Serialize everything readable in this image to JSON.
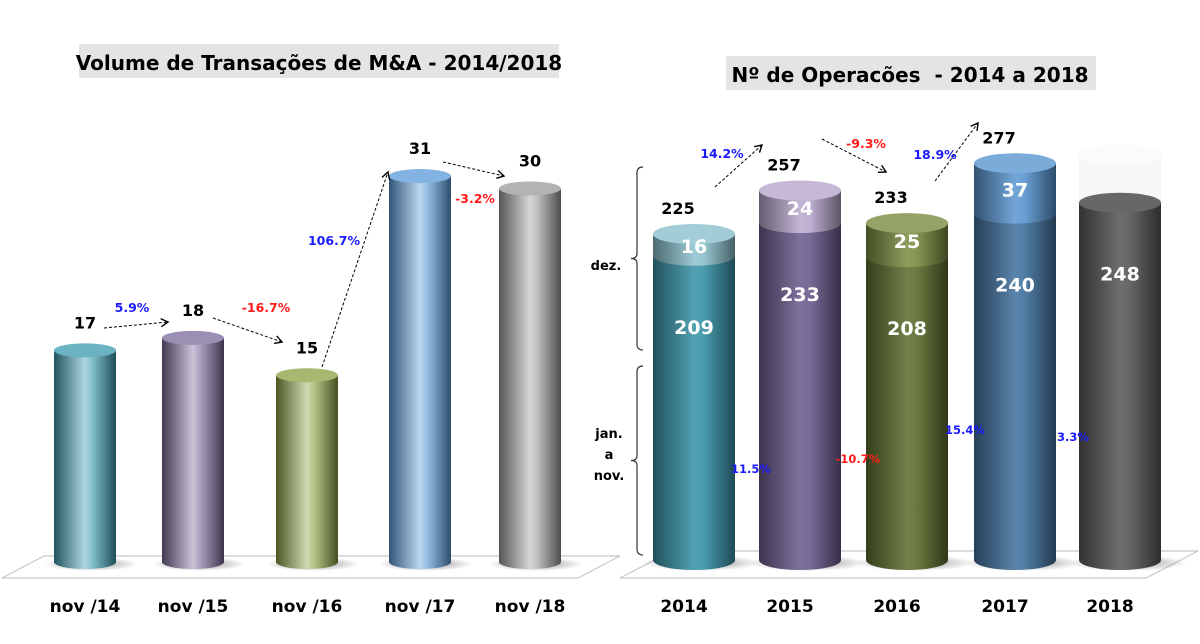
{
  "chart_data": [
    {
      "type": "bar",
      "title": "Volume de Transações de M&A - 2014/2018",
      "xlabel": "",
      "ylabel": "",
      "categories": [
        "nov /14",
        "nov /15",
        "nov /16",
        "nov /17",
        "nov /18"
      ],
      "values": [
        17,
        18,
        15,
        31,
        30
      ],
      "value_labels": [
        "17",
        "18",
        "15",
        "31",
        "30"
      ],
      "colors": [
        "#3a9aae",
        "#7a6a9a",
        "#8aa040",
        "#5a9ad8",
        "#9a9a9a"
      ],
      "changes": [
        {
          "from": 0,
          "to": 1,
          "label": "5.9%",
          "color": "#1a1aff"
        },
        {
          "from": 1,
          "to": 2,
          "label": "-16.7%",
          "color": "#ff1a1a"
        },
        {
          "from": 2,
          "to": 3,
          "label": "106.7%",
          "color": "#1a1aff"
        },
        {
          "from": 3,
          "to": 4,
          "label": "-3.2%",
          "color": "#ff1a1a"
        }
      ],
      "ylim": [
        0,
        35
      ],
      "grid": false
    },
    {
      "type": "bar",
      "stacked": true,
      "title": "Nº de Operacões  - 2014 a 2018",
      "xlabel": "",
      "ylabel": "",
      "categories": [
        "2014",
        "2015",
        "2016",
        "2017",
        "2018"
      ],
      "series": [
        {
          "name": "jan. a nov.",
          "values": [
            209,
            233,
            208,
            240,
            248
          ],
          "labels": [
            "209",
            "233",
            "208",
            "240",
            "248"
          ]
        },
        {
          "name": "dez.",
          "values": [
            16,
            24,
            25,
            37,
            null
          ],
          "labels": [
            "16",
            "24",
            "25",
            "37",
            ""
          ]
        }
      ],
      "totals": [
        225,
        257,
        233,
        277,
        null
      ],
      "total_labels": [
        "225",
        "257",
        "233",
        "277"
      ],
      "colors": [
        "#3a94a8",
        "#6e5e8e",
        "#5e7030",
        "#44739e",
        "#5a5a5a"
      ],
      "top_colors": [
        "#8cc0cc",
        "#b8a8cc",
        "#7a8c40",
        "#5a96d0",
        "#f4f4f4"
      ],
      "total_changes": [
        {
          "from": 0,
          "to": 1,
          "label": "14.2%",
          "color": "#1a1aff"
        },
        {
          "from": 1,
          "to": 2,
          "label": "-9.3%",
          "color": "#ff1a1a"
        },
        {
          "from": 2,
          "to": 3,
          "label": "18.9%",
          "color": "#1a1aff"
        }
      ],
      "base_changes": [
        {
          "from": 0,
          "to": 1,
          "label": "11.5%",
          "color": "#1a1aff"
        },
        {
          "from": 1,
          "to": 2,
          "label": "-10.7%",
          "color": "#ff1a1a"
        },
        {
          "from": 2,
          "to": 3,
          "label": "15.4%",
          "color": "#1a1aff"
        },
        {
          "from": 3,
          "to": 4,
          "label": "3.3%",
          "color": "#1a1aff"
        }
      ],
      "brackets": [
        {
          "label_lines": [
            "dez."
          ]
        },
        {
          "label_lines": [
            "jan.",
            "a",
            "nov."
          ]
        }
      ],
      "ylim": [
        0,
        300
      ],
      "grid": false
    }
  ]
}
